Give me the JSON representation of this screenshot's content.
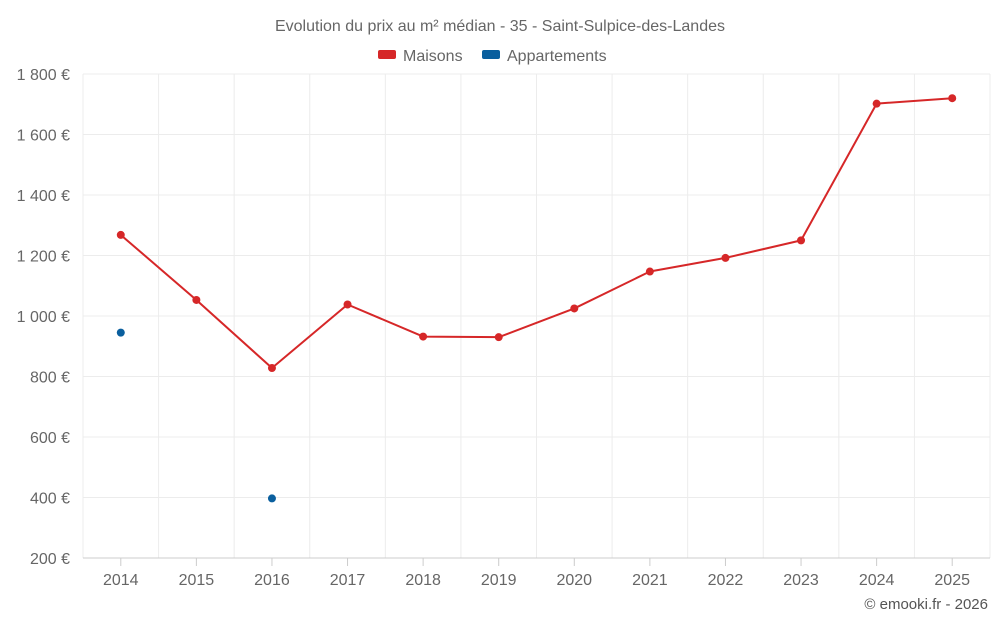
{
  "chart_data": {
    "type": "line",
    "title": "Evolution du prix au m² médian - 35 - Saint-Sulpice-des-Landes",
    "categories": [
      "2014",
      "2015",
      "2016",
      "2017",
      "2018",
      "2019",
      "2020",
      "2021",
      "2022",
      "2023",
      "2024",
      "2025"
    ],
    "ylim": [
      200,
      1800
    ],
    "yticks": [
      200,
      400,
      600,
      800,
      1000,
      1200,
      1400,
      1600,
      1800
    ],
    "ytick_labels": [
      "200 €",
      "400 €",
      "600 €",
      "800 €",
      "1 000 €",
      "1 200 €",
      "1 400 €",
      "1 600 €",
      "1 800 €"
    ],
    "legend_position": "top-center",
    "grid": true,
    "series": [
      {
        "name": "Maisons",
        "color": "#d62728",
        "values": [
          1268,
          1053,
          828,
          1038,
          932,
          930,
          1025,
          1147,
          1192,
          1250,
          1702,
          1720
        ]
      },
      {
        "name": "Appartements",
        "color": "#0a5f9e",
        "values": [
          945,
          null,
          397,
          null,
          null,
          null,
          null,
          null,
          null,
          null,
          null,
          null
        ]
      }
    ]
  },
  "credit": "© emooki.fr - 2026"
}
